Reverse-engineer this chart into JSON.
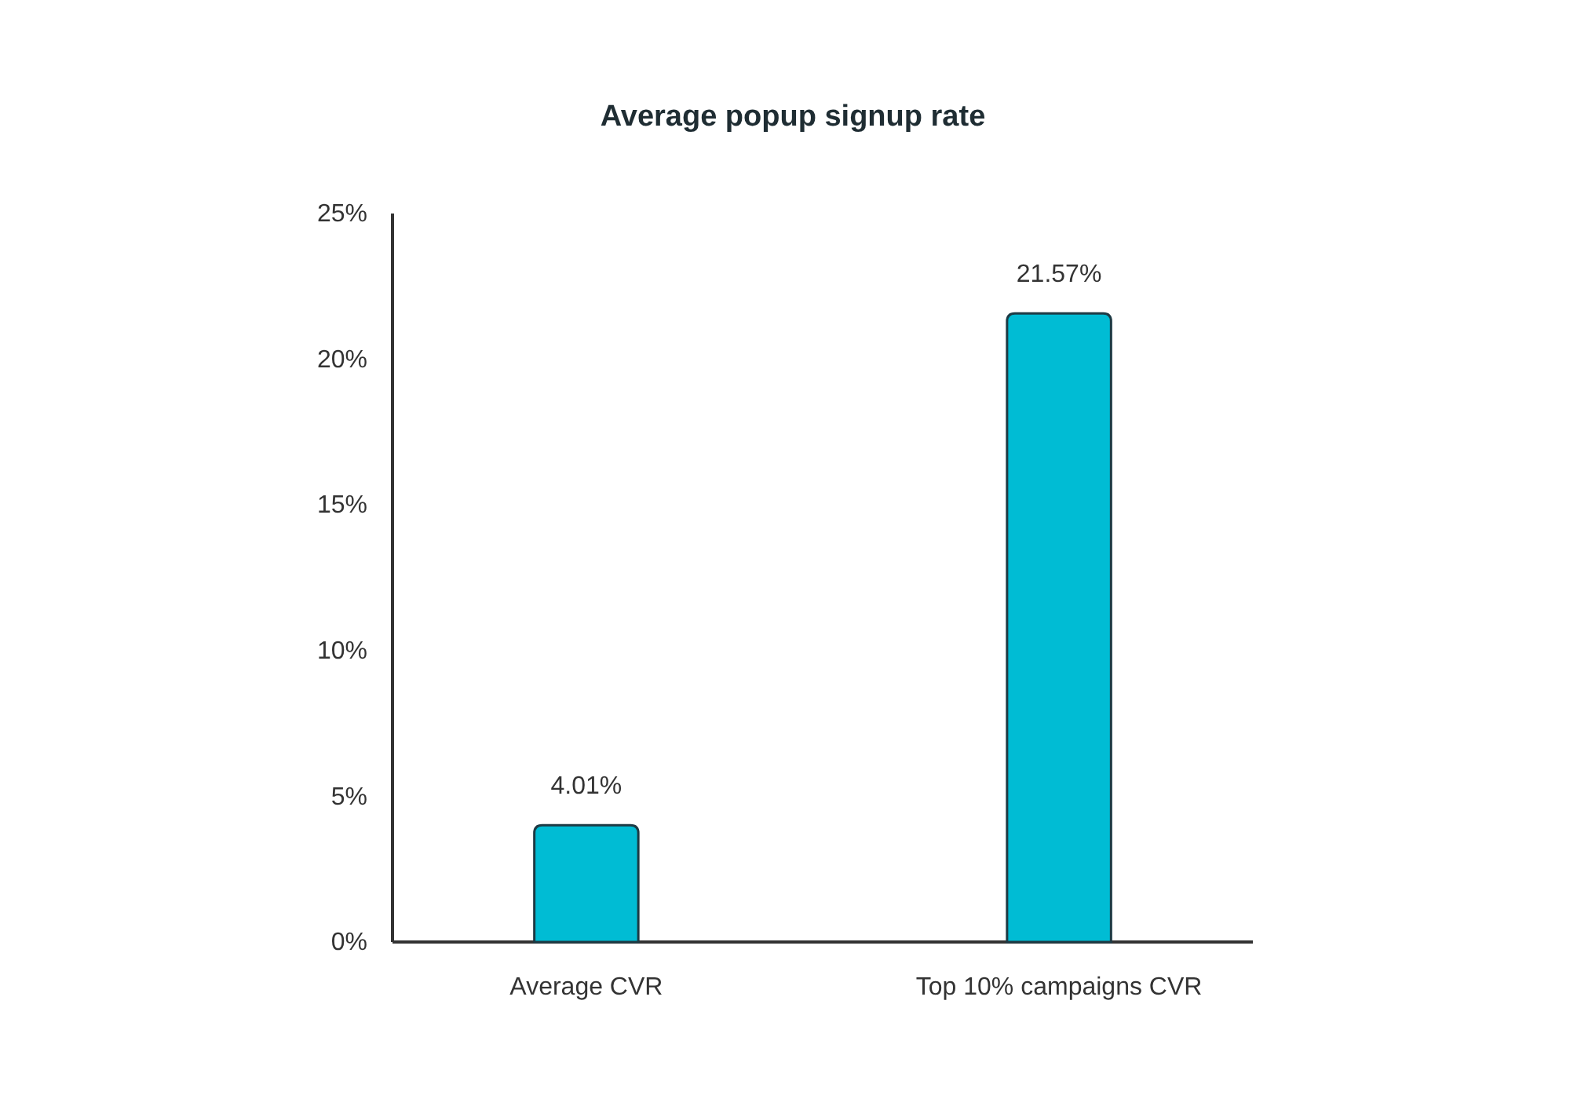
{
  "chart_data": {
    "type": "bar",
    "title": "Average popup signup rate",
    "categories": [
      "Average CVR",
      "Top 10% campaigns CVR"
    ],
    "values": [
      4.01,
      21.57
    ],
    "value_labels": [
      "4.01%",
      "21.57%"
    ],
    "color": "#00bcd4",
    "ylim": [
      0,
      25
    ],
    "yticks": [
      {
        "value": 0,
        "label": "0%"
      },
      {
        "value": 5,
        "label": "5%"
      },
      {
        "value": 10,
        "label": "10%"
      },
      {
        "value": 15,
        "label": "15%"
      },
      {
        "value": 20,
        "label": "20%"
      },
      {
        "value": 25,
        "label": "25%"
      }
    ],
    "grid": false
  }
}
